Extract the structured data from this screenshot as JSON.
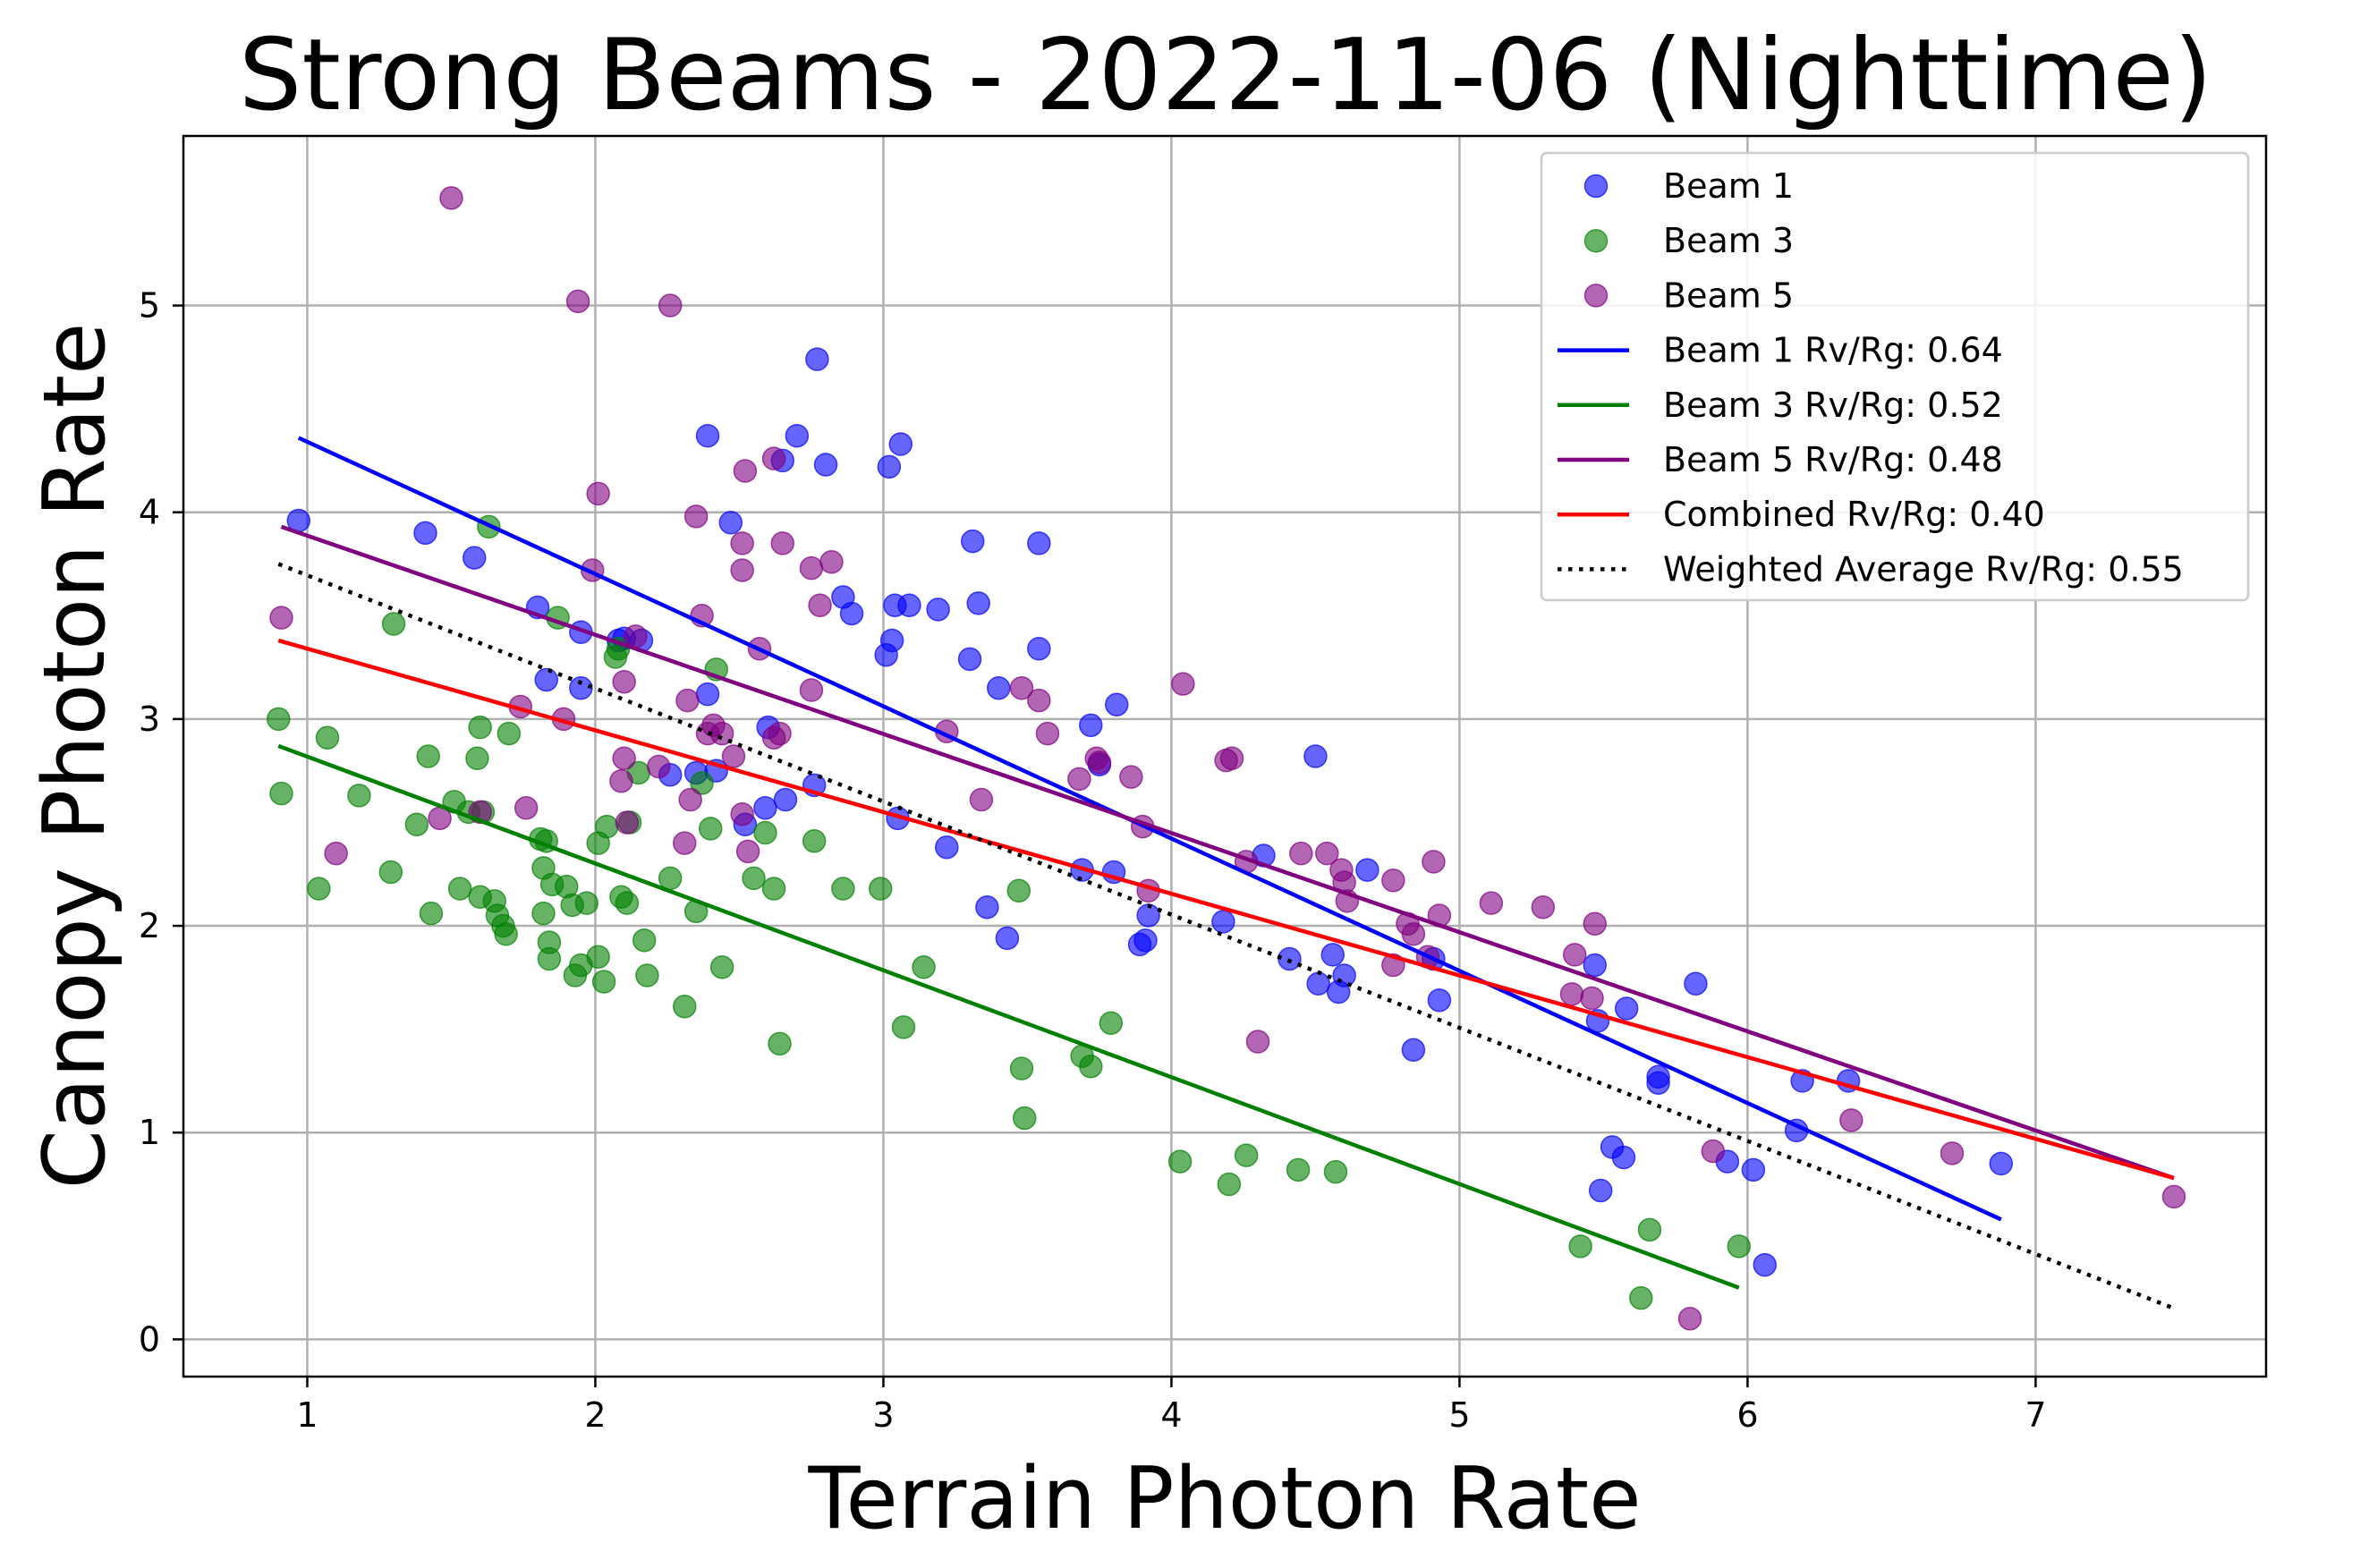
{
  "chart_data": {
    "type": "scatter",
    "title": "Strong Beams - 2022-11-06 (Nighttime)",
    "xlabel": "Terrain Photon Rate",
    "ylabel": "Canopy Photon Rate",
    "xlim": [
      0.57,
      7.8
    ],
    "ylim": [
      -0.18,
      5.82
    ],
    "xticks": [
      1,
      2,
      3,
      4,
      5,
      6,
      7
    ],
    "yticks": [
      0,
      1,
      2,
      3,
      4,
      5
    ],
    "grid": true,
    "legend_position": "top-right",
    "series": [
      {
        "name": "Beam 1",
        "color": "#0000ff",
        "points": [
          [
            0.97,
            3.96
          ],
          [
            1.41,
            3.9
          ],
          [
            1.58,
            3.78
          ],
          [
            1.8,
            3.54
          ],
          [
            1.83,
            3.19
          ],
          [
            1.95,
            3.42
          ],
          [
            1.95,
            3.15
          ],
          [
            2.08,
            3.38
          ],
          [
            2.1,
            3.39
          ],
          [
            2.16,
            3.38
          ],
          [
            2.26,
            2.73
          ],
          [
            2.35,
            2.74
          ],
          [
            2.39,
            3.12
          ],
          [
            2.39,
            4.37
          ],
          [
            2.42,
            2.75
          ],
          [
            2.47,
            3.95
          ],
          [
            2.52,
            2.49
          ],
          [
            2.59,
            2.57
          ],
          [
            2.6,
            2.96
          ],
          [
            2.65,
            4.25
          ],
          [
            2.66,
            2.61
          ],
          [
            2.7,
            4.37
          ],
          [
            2.76,
            2.68
          ],
          [
            2.77,
            4.74
          ],
          [
            2.8,
            4.23
          ],
          [
            2.86,
            3.59
          ],
          [
            2.89,
            3.51
          ],
          [
            3.01,
            3.31
          ],
          [
            3.02,
            4.22
          ],
          [
            3.03,
            3.38
          ],
          [
            3.04,
            3.55
          ],
          [
            3.05,
            2.52
          ],
          [
            3.06,
            4.33
          ],
          [
            3.09,
            3.55
          ],
          [
            3.19,
            3.53
          ],
          [
            3.22,
            2.38
          ],
          [
            3.3,
            3.29
          ],
          [
            3.31,
            3.86
          ],
          [
            3.33,
            3.56
          ],
          [
            3.36,
            2.09
          ],
          [
            3.4,
            3.15
          ],
          [
            3.43,
            1.94
          ],
          [
            3.54,
            3.34
          ],
          [
            3.54,
            3.85
          ],
          [
            3.69,
            2.27
          ],
          [
            3.72,
            2.97
          ],
          [
            3.75,
            2.78
          ],
          [
            3.8,
            2.26
          ],
          [
            3.81,
            3.07
          ],
          [
            3.89,
            1.91
          ],
          [
            3.91,
            1.93
          ],
          [
            3.92,
            2.05
          ],
          [
            4.18,
            2.02
          ],
          [
            4.32,
            2.34
          ],
          [
            4.41,
            1.84
          ],
          [
            4.5,
            2.82
          ],
          [
            4.51,
            1.72
          ],
          [
            4.56,
            1.86
          ],
          [
            4.58,
            1.68
          ],
          [
            4.6,
            1.76
          ],
          [
            4.68,
            2.27
          ],
          [
            4.84,
            1.4
          ],
          [
            4.91,
            1.84
          ],
          [
            4.93,
            1.64
          ],
          [
            5.47,
            1.81
          ],
          [
            5.48,
            1.54
          ],
          [
            5.49,
            0.72
          ],
          [
            5.53,
            0.93
          ],
          [
            5.57,
            0.88
          ],
          [
            5.58,
            1.6
          ],
          [
            5.69,
            1.24
          ],
          [
            5.69,
            1.27
          ],
          [
            5.82,
            1.72
          ],
          [
            5.93,
            0.86
          ],
          [
            6.02,
            0.82
          ],
          [
            6.06,
            0.36
          ],
          [
            6.17,
            1.01
          ],
          [
            6.19,
            1.25
          ],
          [
            6.35,
            1.25
          ],
          [
            6.88,
            0.85
          ]
        ]
      },
      {
        "name": "Beam 3",
        "color": "#008000",
        "points": [
          [
            0.9,
            3.0
          ],
          [
            0.91,
            2.64
          ],
          [
            1.04,
            2.18
          ],
          [
            1.07,
            2.91
          ],
          [
            1.18,
            2.63
          ],
          [
            1.29,
            2.26
          ],
          [
            1.3,
            3.46
          ],
          [
            1.38,
            2.49
          ],
          [
            1.42,
            2.82
          ],
          [
            1.43,
            2.06
          ],
          [
            1.51,
            2.6
          ],
          [
            1.53,
            2.18
          ],
          [
            1.56,
            2.55
          ],
          [
            1.59,
            2.81
          ],
          [
            1.6,
            2.96
          ],
          [
            1.6,
            2.14
          ],
          [
            1.61,
            2.55
          ],
          [
            1.63,
            3.93
          ],
          [
            1.65,
            2.12
          ],
          [
            1.66,
            2.05
          ],
          [
            1.68,
            2.0
          ],
          [
            1.69,
            1.96
          ],
          [
            1.7,
            2.93
          ],
          [
            1.81,
            2.42
          ],
          [
            1.82,
            2.28
          ],
          [
            1.82,
            2.06
          ],
          [
            1.83,
            2.41
          ],
          [
            1.84,
            1.84
          ],
          [
            1.84,
            1.92
          ],
          [
            1.85,
            2.2
          ],
          [
            1.87,
            3.49
          ],
          [
            1.9,
            2.19
          ],
          [
            1.92,
            2.1
          ],
          [
            1.93,
            1.76
          ],
          [
            1.95,
            1.81
          ],
          [
            1.97,
            2.11
          ],
          [
            2.01,
            1.85
          ],
          [
            2.01,
            2.4
          ],
          [
            2.03,
            1.73
          ],
          [
            2.04,
            2.48
          ],
          [
            2.07,
            3.3
          ],
          [
            2.08,
            3.34
          ],
          [
            2.09,
            2.14
          ],
          [
            2.11,
            2.11
          ],
          [
            2.12,
            2.5
          ],
          [
            2.15,
            2.74
          ],
          [
            2.17,
            1.93
          ],
          [
            2.18,
            1.76
          ],
          [
            2.26,
            2.23
          ],
          [
            2.31,
            1.61
          ],
          [
            2.35,
            2.07
          ],
          [
            2.37,
            2.69
          ],
          [
            2.4,
            2.47
          ],
          [
            2.42,
            3.24
          ],
          [
            2.44,
            1.8
          ],
          [
            2.55,
            2.23
          ],
          [
            2.59,
            2.45
          ],
          [
            2.62,
            2.18
          ],
          [
            2.64,
            1.43
          ],
          [
            2.76,
            2.41
          ],
          [
            2.86,
            2.18
          ],
          [
            2.99,
            2.18
          ],
          [
            3.07,
            1.51
          ],
          [
            3.14,
            1.8
          ],
          [
            3.47,
            2.17
          ],
          [
            3.48,
            1.31
          ],
          [
            3.49,
            1.07
          ],
          [
            3.69,
            1.37
          ],
          [
            3.72,
            1.32
          ],
          [
            3.79,
            1.53
          ],
          [
            4.03,
            0.86
          ],
          [
            4.2,
            0.75
          ],
          [
            4.26,
            0.89
          ],
          [
            4.44,
            0.82
          ],
          [
            4.57,
            0.81
          ],
          [
            5.42,
            0.45
          ],
          [
            5.63,
            0.2
          ],
          [
            5.66,
            0.53
          ],
          [
            5.97,
            0.45
          ]
        ]
      },
      {
        "name": "Beam 5",
        "color": "#800080",
        "points": [
          [
            0.91,
            3.49
          ],
          [
            1.1,
            2.35
          ],
          [
            1.46,
            2.52
          ],
          [
            1.5,
            5.52
          ],
          [
            1.6,
            2.55
          ],
          [
            1.74,
            3.06
          ],
          [
            1.76,
            2.57
          ],
          [
            1.89,
            3.0
          ],
          [
            1.94,
            5.02
          ],
          [
            1.99,
            3.72
          ],
          [
            2.01,
            4.09
          ],
          [
            2.09,
            2.7
          ],
          [
            2.1,
            2.81
          ],
          [
            2.1,
            3.18
          ],
          [
            2.11,
            2.5
          ],
          [
            2.14,
            3.4
          ],
          [
            2.22,
            2.77
          ],
          [
            2.26,
            5.0
          ],
          [
            2.31,
            2.4
          ],
          [
            2.32,
            3.09
          ],
          [
            2.33,
            2.61
          ],
          [
            2.35,
            3.98
          ],
          [
            2.37,
            3.5
          ],
          [
            2.39,
            2.93
          ],
          [
            2.41,
            2.97
          ],
          [
            2.44,
            2.93
          ],
          [
            2.48,
            2.82
          ],
          [
            2.51,
            3.85
          ],
          [
            2.51,
            3.72
          ],
          [
            2.51,
            2.54
          ],
          [
            2.52,
            4.2
          ],
          [
            2.53,
            2.36
          ],
          [
            2.57,
            3.34
          ],
          [
            2.62,
            4.26
          ],
          [
            2.62,
            2.91
          ],
          [
            2.64,
            2.93
          ],
          [
            2.65,
            3.85
          ],
          [
            2.75,
            3.73
          ],
          [
            2.75,
            3.14
          ],
          [
            2.78,
            3.55
          ],
          [
            2.82,
            3.76
          ],
          [
            3.22,
            2.94
          ],
          [
            3.34,
            2.61
          ],
          [
            3.48,
            3.15
          ],
          [
            3.54,
            3.09
          ],
          [
            3.57,
            2.93
          ],
          [
            3.68,
            2.71
          ],
          [
            3.74,
            2.81
          ],
          [
            3.75,
            2.79
          ],
          [
            3.86,
            2.72
          ],
          [
            3.9,
            2.48
          ],
          [
            3.92,
            2.17
          ],
          [
            4.04,
            3.17
          ],
          [
            4.19,
            2.8
          ],
          [
            4.21,
            2.81
          ],
          [
            4.26,
            2.31
          ],
          [
            4.3,
            1.44
          ],
          [
            4.45,
            2.35
          ],
          [
            4.54,
            2.35
          ],
          [
            4.59,
            2.27
          ],
          [
            4.6,
            2.21
          ],
          [
            4.61,
            2.12
          ],
          [
            4.77,
            1.81
          ],
          [
            4.77,
            2.22
          ],
          [
            4.82,
            2.01
          ],
          [
            4.84,
            1.96
          ],
          [
            4.89,
            1.85
          ],
          [
            4.91,
            2.31
          ],
          [
            4.93,
            2.05
          ],
          [
            5.11,
            2.11
          ],
          [
            5.29,
            2.09
          ],
          [
            5.39,
            1.67
          ],
          [
            5.4,
            1.86
          ],
          [
            5.46,
            1.65
          ],
          [
            5.47,
            2.01
          ],
          [
            5.8,
            0.1
          ],
          [
            5.88,
            0.91
          ],
          [
            6.36,
            1.06
          ],
          [
            6.71,
            0.9
          ],
          [
            7.48,
            0.69
          ]
        ]
      }
    ],
    "fit_lines": [
      {
        "name": "Beam 1 Rv/Rg: 0.64",
        "color": "#0000ff",
        "dash": "solid",
        "x": [
          0.97,
          6.88
        ],
        "y": [
          4.36,
          0.58
        ]
      },
      {
        "name": "Beam 3 Rv/Rg: 0.52",
        "color": "#008000",
        "dash": "solid",
        "x": [
          0.9,
          5.97
        ],
        "y": [
          2.87,
          0.25
        ]
      },
      {
        "name": "Beam 5 Rv/Rg: 0.48",
        "color": "#800080",
        "dash": "solid",
        "x": [
          0.91,
          7.48
        ],
        "y": [
          3.93,
          0.78
        ]
      },
      {
        "name": "Combined Rv/Rg: 0.40",
        "color": "#ff0000",
        "dash": "solid",
        "x": [
          0.9,
          7.48
        ],
        "y": [
          3.38,
          0.78
        ]
      },
      {
        "name": "Weighted Average Rv/Rg: 0.55",
        "color": "#000000",
        "dash": "dotted",
        "x": [
          0.9,
          7.48
        ],
        "y": [
          3.75,
          0.15
        ]
      }
    ]
  }
}
